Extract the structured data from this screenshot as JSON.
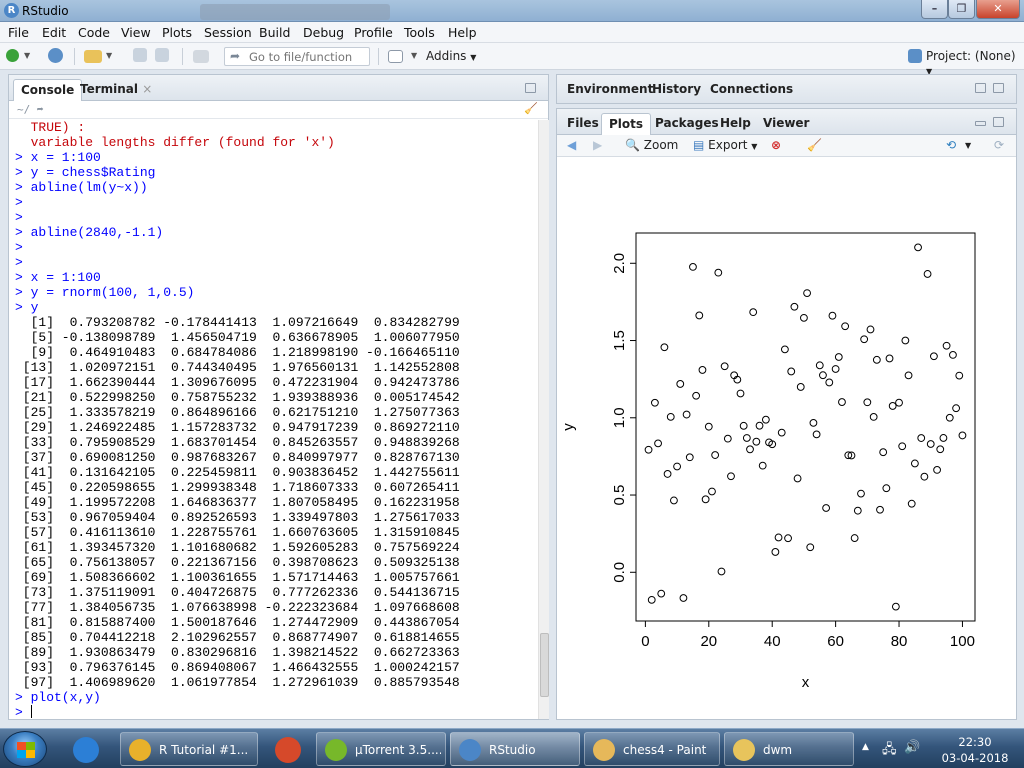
{
  "window": {
    "title": "RStudio",
    "app_icon": "R"
  },
  "menu": [
    "File",
    "Edit",
    "Code",
    "View",
    "Plots",
    "Session",
    "Build",
    "Debug",
    "Profile",
    "Tools",
    "Help"
  ],
  "toolbar": {
    "goto_placeholder": "Go to file/function",
    "addins_label": "Addins",
    "project_label": "Project: (None)"
  },
  "console": {
    "tabs": [
      "Console",
      "Terminal"
    ],
    "path": "~/",
    "lines": [
      {
        "cls": "err",
        "text": "  TRUE) :"
      },
      {
        "cls": "err",
        "text": "  variable lengths differ (found for 'x')"
      },
      {
        "cls": "prompt",
        "text": "> x = 1:100"
      },
      {
        "cls": "prompt",
        "text": "> y = chess$Rating"
      },
      {
        "cls": "prompt",
        "text": "> abline(lm(y~x))"
      },
      {
        "cls": "prompt",
        "text": ">"
      },
      {
        "cls": "prompt",
        "text": ">"
      },
      {
        "cls": "prompt",
        "text": "> abline(2840,-1.1)"
      },
      {
        "cls": "prompt",
        "text": ">"
      },
      {
        "cls": "prompt",
        "text": ">"
      },
      {
        "cls": "prompt",
        "text": "> x = 1:100"
      },
      {
        "cls": "prompt",
        "text": "> y = rnorm(100, 1,0.5)"
      },
      {
        "cls": "prompt",
        "text": "> y"
      },
      {
        "cls": "out",
        "text": "  [1]  0.793208782 -0.178441413  1.097216649  0.834282799"
      },
      {
        "cls": "out",
        "text": "  [5] -0.138098789  1.456504719  0.636678905  1.006077950"
      },
      {
        "cls": "out",
        "text": "  [9]  0.464910483  0.684784086  1.218998190 -0.166465110"
      },
      {
        "cls": "out",
        "text": " [13]  1.020972151  0.744340495  1.976560131  1.142552808"
      },
      {
        "cls": "out",
        "text": " [17]  1.662390444  1.309676095  0.472231904  0.942473786"
      },
      {
        "cls": "out",
        "text": " [21]  0.522998250  0.758755232  1.939388936  0.005174542"
      },
      {
        "cls": "out",
        "text": " [25]  1.333578219  0.864896166  0.621751210  1.275077363"
      },
      {
        "cls": "out",
        "text": " [29]  1.246922485  1.157283732  0.947917239  0.869272110"
      },
      {
        "cls": "out",
        "text": " [33]  0.795908529  1.683701454  0.845263557  0.948839268"
      },
      {
        "cls": "out",
        "text": " [37]  0.690081250  0.987683267  0.840997977  0.828767130"
      },
      {
        "cls": "out",
        "text": " [41]  0.131642105  0.225459811  0.903836452  1.442755611"
      },
      {
        "cls": "out",
        "text": " [45]  0.220598655  1.299938348  1.718607333  0.607265411"
      },
      {
        "cls": "out",
        "text": " [49]  1.199572208  1.646836377  1.807058495  0.162231958"
      },
      {
        "cls": "out",
        "text": " [53]  0.967059404  0.892526593  1.339497803  1.275617033"
      },
      {
        "cls": "out",
        "text": " [57]  0.416113610  1.228755761  1.660763605  1.315910845"
      },
      {
        "cls": "out",
        "text": " [61]  1.393457320  1.101680682  1.592605283  0.757569224"
      },
      {
        "cls": "out",
        "text": " [65]  0.756138057  0.221367156  0.398708623  0.509325138"
      },
      {
        "cls": "out",
        "text": " [69]  1.508366602  1.100361655  1.571714463  1.005757661"
      },
      {
        "cls": "out",
        "text": " [73]  1.375119091  0.404726875  0.777262336  0.544136715"
      },
      {
        "cls": "out",
        "text": " [77]  1.384056735  1.076638998 -0.222323684  1.097668608"
      },
      {
        "cls": "out",
        "text": " [81]  0.815887400  1.500187646  1.274472909  0.443867054"
      },
      {
        "cls": "out",
        "text": " [85]  0.704412218  2.102962557  0.868774907  0.618814655"
      },
      {
        "cls": "out",
        "text": " [89]  1.930863479  0.830296816  1.398214522  0.662723363"
      },
      {
        "cls": "out",
        "text": " [93]  0.796376145  0.869408067  1.466432555  1.000242157"
      },
      {
        "cls": "out",
        "text": " [97]  1.406989620  1.061977854  1.272961039  0.885793548"
      },
      {
        "cls": "prompt",
        "text": "> plot(x,y)"
      }
    ],
    "final_prompt": ">"
  },
  "env_pane": {
    "tabs": [
      "Environment",
      "History",
      "Connections"
    ]
  },
  "files_pane": {
    "tabs": [
      "Files",
      "Plots",
      "Packages",
      "Help",
      "Viewer"
    ],
    "active_tab": "Plots",
    "zoom_label": "Zoom",
    "export_label": "Export"
  },
  "chart_data": {
    "type": "scatter",
    "xlabel": "x",
    "ylabel": "y",
    "xlim": [
      1,
      100
    ],
    "ylim": [
      -0.222323684,
      2.102962557
    ],
    "xticks": [
      0,
      20,
      40,
      60,
      80,
      100
    ],
    "yticks": [
      0.0,
      0.5,
      1.0,
      1.5,
      2.0
    ],
    "ytick_labels": [
      "0.0",
      "0.5",
      "1.0",
      "1.5",
      "2.0"
    ],
    "marker": "open-circle",
    "x": "1:100",
    "y": [
      0.793208782,
      -0.178441413,
      1.097216649,
      0.834282799,
      -0.138098789,
      1.456504719,
      0.636678905,
      1.00607795,
      0.464910483,
      0.684784086,
      1.21899819,
      -0.16646511,
      1.020972151,
      0.744340495,
      1.976560131,
      1.142552808,
      1.662390444,
      1.309676095,
      0.472231904,
      0.942473786,
      0.52299825,
      0.758755232,
      1.939388936,
      0.005174542,
      1.333578219,
      0.864896166,
      0.62175121,
      1.275077363,
      1.246922485,
      1.157283732,
      0.947917239,
      0.86927211,
      0.795908529,
      1.683701454,
      0.845263557,
      0.948839268,
      0.69008125,
      0.987683267,
      0.840997977,
      0.82876713,
      0.131642105,
      0.225459811,
      0.903836452,
      1.442755611,
      0.220598655,
      1.299938348,
      1.718607333,
      0.607265411,
      1.199572208,
      1.646836377,
      1.807058495,
      0.162231958,
      0.967059404,
      0.892526593,
      1.339497803,
      1.275617033,
      0.41611361,
      1.228755761,
      1.660763605,
      1.315910845,
      1.39345732,
      1.101680682,
      1.592605283,
      0.757569224,
      0.756138057,
      0.221367156,
      0.398708623,
      0.509325138,
      1.508366602,
      1.100361655,
      1.571714463,
      1.005757661,
      1.375119091,
      0.404726875,
      0.777262336,
      0.544136715,
      1.384056735,
      1.076638998,
      -0.222323684,
      1.097668608,
      0.8158874,
      1.500187646,
      1.274472909,
      0.443867054,
      0.704412218,
      2.102962557,
      0.868774907,
      0.618814655,
      1.930863479,
      0.830296816,
      1.398214522,
      0.662723363,
      0.796376145,
      0.869408067,
      1.466432555,
      1.000242157,
      1.40698962,
      1.061977854,
      1.272961039,
      0.885793548
    ]
  },
  "taskbar": {
    "items": [
      {
        "label": "",
        "icon": "ie-icon",
        "color": "#2c7fd6",
        "pinned": true
      },
      {
        "label": "R Tutorial #1...",
        "icon": "chrome-icon",
        "color": "#e8b12b"
      },
      {
        "label": "",
        "icon": "powerpoint-icon",
        "color": "#d6492a",
        "pinned": true
      },
      {
        "label": "µTorrent 3.5....",
        "icon": "utorrent-icon",
        "color": "#77b82a"
      },
      {
        "label": "RStudio",
        "icon": "rstudio-icon",
        "color": "#4b86c7",
        "active": true
      },
      {
        "label": "chess4 - Paint",
        "icon": "paint-icon",
        "color": "#e6b85a"
      },
      {
        "label": "dwm",
        "icon": "folder-icon",
        "color": "#e8c45c"
      }
    ],
    "time": "22:30",
    "date": "03-04-2018"
  }
}
